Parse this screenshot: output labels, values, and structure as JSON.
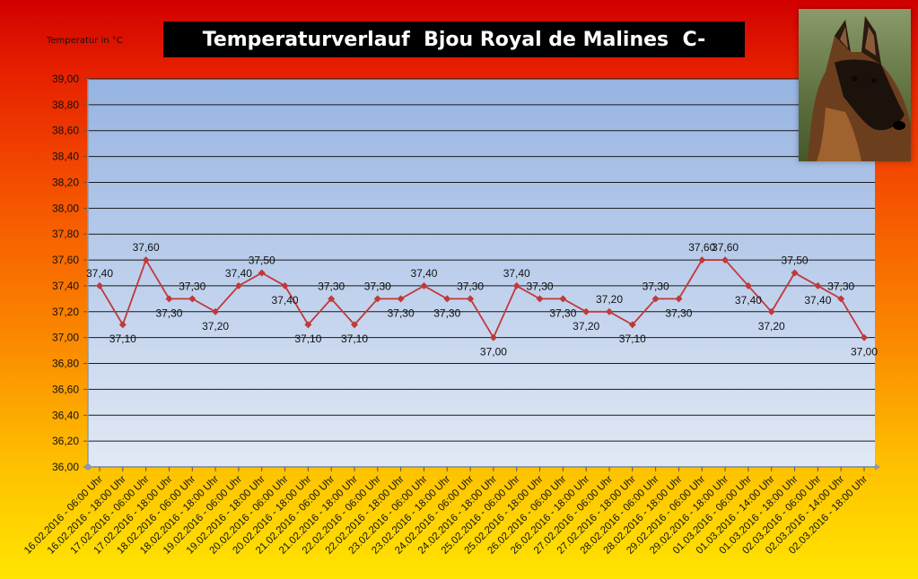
{
  "chart_data": {
    "type": "line",
    "title": "Temperaturverlauf  Bjou Royal de Malines  C-",
    "ylabel": "Temperatur in °C",
    "xlabel": "",
    "ylim": [
      36.0,
      39.0
    ],
    "yticks": [
      "36,00",
      "36,20",
      "36,40",
      "36,60",
      "36,80",
      "37,00",
      "37,20",
      "37,40",
      "37,60",
      "37,80",
      "38,00",
      "38,20",
      "38,40",
      "38,60",
      "38,80",
      "39,00"
    ],
    "grid": true,
    "legend": "none",
    "series_color": "#c0393b",
    "categories": [
      "16.02.2016 - 06:00 Uhr",
      "16.02.2016 - 18:00 Uhr",
      "17.02.2016 - 06:00 Uhr",
      "17.02.2016 - 18:00 Uhr",
      "18.02.2016 - 06:00 Uhr",
      "18.02.2016 - 18:00 Uhr",
      "19.02.2016 - 06:00 Uhr",
      "19.02.2016 - 18:00 Uhr",
      "20.02.2016 - 06:00 Uhr",
      "20.02.2016 - 18:00 Uhr",
      "21.02.2016 - 06:00 Uhr",
      "21.02.2016 - 18:00 Uhr",
      "22.02.2016 - 06:00 Uhr",
      "22.02.2016 - 18:00 Uhr",
      "23.02.2016 - 06:00 Uhr",
      "23.02.2016 - 18:00 Uhr",
      "24.02.2016 - 06:00 Uhr",
      "24.02.2016 - 18:00 Uhr",
      "25.02.2016 - 06:00 Uhr",
      "25.02.2016 - 18:00 Uhr",
      "26.02.2016 - 06:00 Uhr",
      "26.02.2016 - 18:00 Uhr",
      "27.02.2016 - 06:00 Uhr",
      "27.02.2016 - 18:00 Uhr",
      "28.02.2016 - 06:00 Uhr",
      "28.02.2016 - 18:00 Uhr",
      "29.02.2016 - 06:00 Uhr",
      "29.02.2016 - 18:00 Uhr",
      "01.03.2016 - 06:00 Uhr",
      "01.03.2016 - 14:00 Uhr",
      "01.03.2016 - 18:00 Uhr",
      "02.03.2016 - 06:00 Uhr",
      "02.03.2016 - 14:00 Uhr",
      "02.03.2016 - 18:00 Uhr"
    ],
    "series": [
      {
        "values": [
          37.4,
          37.1,
          37.6,
          37.3,
          37.3,
          37.2,
          37.4,
          37.5,
          37.4,
          37.1,
          37.3,
          37.1,
          37.3,
          37.3,
          37.4,
          37.3,
          37.3,
          37.0,
          37.4,
          37.3,
          37.3,
          37.2,
          37.2,
          37.1,
          37.3,
          37.3,
          37.6,
          37.6,
          37.4,
          37.2,
          37.5,
          37.4,
          37.3,
          37.0
        ],
        "labels": [
          "37,40",
          "37,10",
          "37,60",
          "37,30",
          "37,30",
          "37,20",
          "37,40",
          "37,50",
          "37,40",
          "37,10",
          "37,30",
          "37,10",
          "37,30",
          "37,30",
          "37,40",
          "37,30",
          "37,30",
          "37,00",
          "37,40",
          "37,30",
          "37,30",
          "37,20",
          "37,20",
          "37,10",
          "37,30",
          "37,30",
          "37,60",
          "37,60",
          "37,40",
          "37,20",
          "37,50",
          "37,40",
          "37,30",
          "37,00"
        ],
        "label_pos": [
          "above",
          "below",
          "above",
          "below",
          "above",
          "below",
          "above",
          "above",
          "below",
          "below",
          "above",
          "below",
          "above",
          "below",
          "above",
          "below",
          "above",
          "below",
          "above",
          "above",
          "below",
          "below",
          "above",
          "below",
          "above",
          "below",
          "above",
          "above",
          "below",
          "below",
          "above",
          "below",
          "above",
          "below"
        ]
      }
    ]
  },
  "photo": {
    "icon": "german-shepherd-dog-photo"
  }
}
